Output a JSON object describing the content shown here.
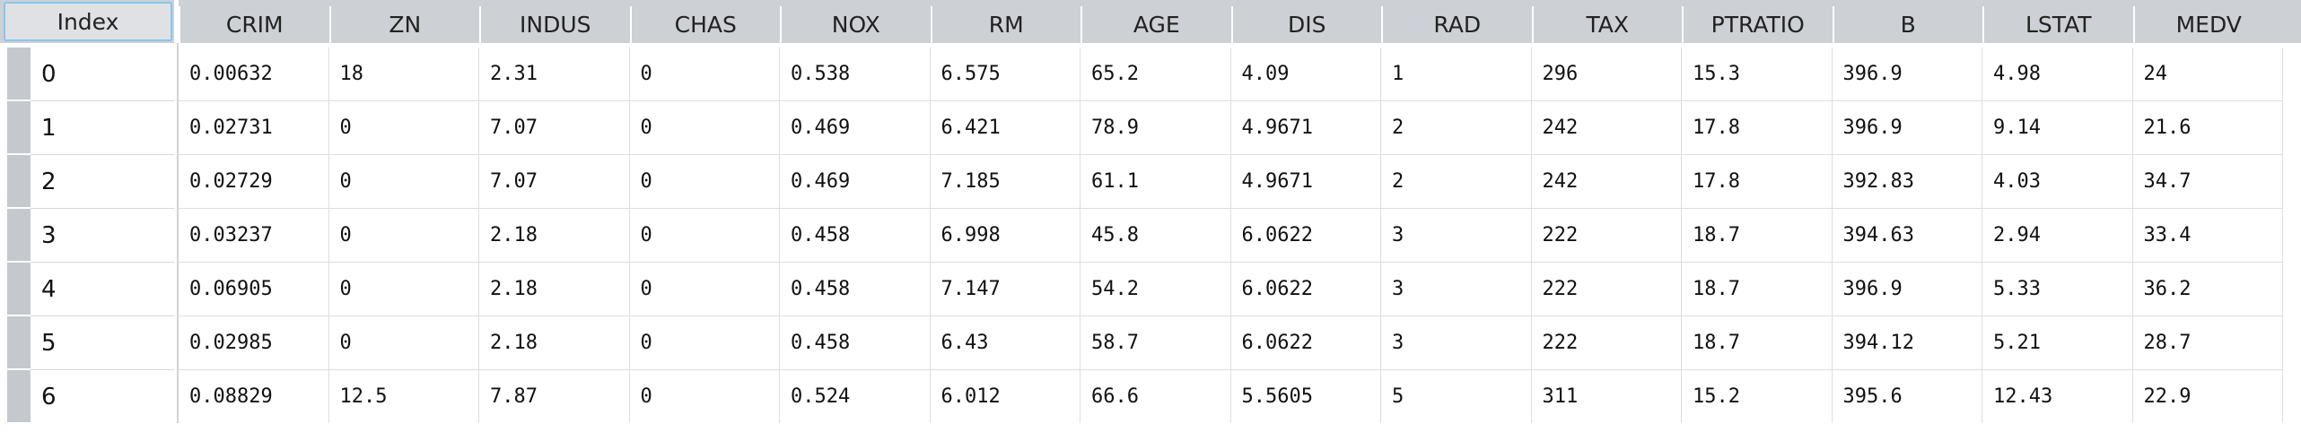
{
  "table": {
    "index_header": "Index",
    "columns": [
      "CRIM",
      "ZN",
      "INDUS",
      "CHAS",
      "NOX",
      "RM",
      "AGE",
      "DIS",
      "RAD",
      "TAX",
      "PTRATIO",
      "B",
      "LSTAT",
      "MEDV"
    ],
    "rows": [
      {
        "index": "0",
        "values": [
          "0.00632",
          "18",
          "2.31",
          "0",
          "0.538",
          "6.575",
          "65.2",
          "4.09",
          "1",
          "296",
          "15.3",
          "396.9",
          "4.98",
          "24"
        ]
      },
      {
        "index": "1",
        "values": [
          "0.02731",
          "0",
          "7.07",
          "0",
          "0.469",
          "6.421",
          "78.9",
          "4.9671",
          "2",
          "242",
          "17.8",
          "396.9",
          "9.14",
          "21.6"
        ]
      },
      {
        "index": "2",
        "values": [
          "0.02729",
          "0",
          "7.07",
          "0",
          "0.469",
          "7.185",
          "61.1",
          "4.9671",
          "2",
          "242",
          "17.8",
          "392.83",
          "4.03",
          "34.7"
        ]
      },
      {
        "index": "3",
        "values": [
          "0.03237",
          "0",
          "2.18",
          "0",
          "0.458",
          "6.998",
          "45.8",
          "6.0622",
          "3",
          "222",
          "18.7",
          "394.63",
          "2.94",
          "33.4"
        ]
      },
      {
        "index": "4",
        "values": [
          "0.06905",
          "0",
          "2.18",
          "0",
          "0.458",
          "7.147",
          "54.2",
          "6.0622",
          "3",
          "222",
          "18.7",
          "396.9",
          "5.33",
          "36.2"
        ]
      },
      {
        "index": "5",
        "values": [
          "0.02985",
          "0",
          "2.18",
          "0",
          "0.458",
          "6.43",
          "58.7",
          "6.0622",
          "3",
          "222",
          "18.7",
          "394.12",
          "5.21",
          "28.7"
        ]
      },
      {
        "index": "6",
        "values": [
          "0.08829",
          "12.5",
          "7.87",
          "0",
          "0.524",
          "6.012",
          "66.6",
          "5.5605",
          "5",
          "311",
          "15.2",
          "395.6",
          "12.43",
          "22.9"
        ]
      }
    ]
  },
  "colors": {
    "header_bg": "#cdd0d4",
    "selection_border": "#88c6ee",
    "row_handle": "#c5c8cc",
    "grid_line": "#dcdee1"
  }
}
